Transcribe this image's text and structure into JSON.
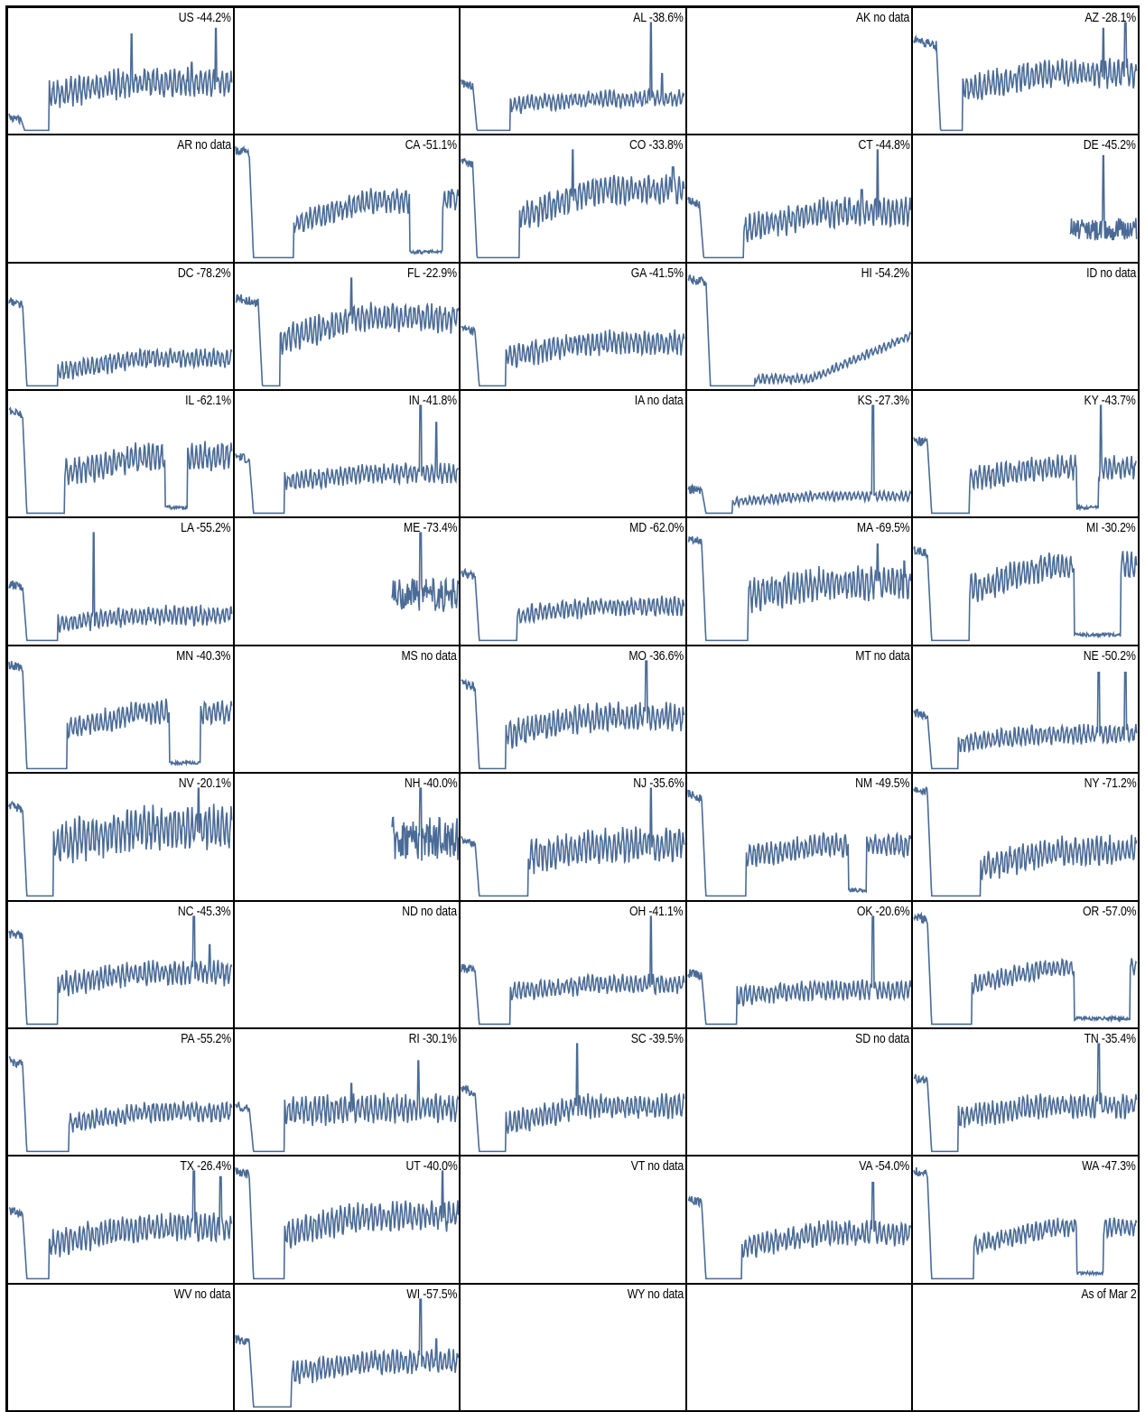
{
  "line_color": "#4a6b96",
  "footnote": "As of Mar 2",
  "chart_data": {
    "type": "line",
    "layout": "small-multiples",
    "grid": false,
    "panels": [
      {
        "id": "US",
        "label": "US -44.2%",
        "change": -44.2,
        "has_data": true,
        "baseline": 0.12,
        "low_start": 0.05,
        "low_end": 0.18,
        "growth": 0.32,
        "plateau": 0.42,
        "spikes": [
          {
            "at": 0.55,
            "h": 0.85
          },
          {
            "at": 0.82,
            "h": 0.6
          },
          {
            "at": 0.93,
            "h": 0.9
          }
        ],
        "noise": 0.12
      },
      {
        "id": "blank1",
        "label": "",
        "change": null,
        "has_data": false
      },
      {
        "id": "AL",
        "label": "AL -38.6%",
        "change": -38.6,
        "has_data": true,
        "baseline": 0.42,
        "low_start": 0.05,
        "low_end": 0.22,
        "growth": 0.22,
        "plateau": 0.28,
        "spikes": [
          {
            "at": 0.85,
            "h": 0.95
          },
          {
            "at": 0.9,
            "h": 0.5
          }
        ],
        "noise": 0.07
      },
      {
        "id": "AK",
        "label": "AK no data",
        "change": null,
        "has_data": false
      },
      {
        "id": "AZ",
        "label": "AZ -28.1%",
        "change": -28.1,
        "has_data": true,
        "baseline": 0.8,
        "low_start": 0.1,
        "low_end": 0.22,
        "growth": 0.35,
        "plateau": 0.5,
        "spikes": [
          {
            "at": 0.85,
            "h": 0.9
          },
          {
            "at": 0.95,
            "h": 0.95
          }
        ],
        "noise": 0.12
      },
      {
        "id": "AR",
        "label": "AR no data",
        "change": null,
        "has_data": false
      },
      {
        "id": "CA",
        "label": "CA -51.1%",
        "change": -51.1,
        "has_data": true,
        "baseline": 0.95,
        "low_start": 0.06,
        "low_end": 0.26,
        "growth": 0.3,
        "plateau": 0.5,
        "dip": [
          0.78,
          0.93
        ],
        "spikes": [
          {
            "at": 0.97,
            "h": 0.6
          }
        ],
        "noise": 0.1
      },
      {
        "id": "CO",
        "label": "CO -33.8%",
        "change": -33.8,
        "has_data": true,
        "baseline": 0.85,
        "low_start": 0.05,
        "low_end": 0.26,
        "growth": 0.35,
        "plateau": 0.6,
        "spikes": [
          {
            "at": 0.5,
            "h": 0.95
          },
          {
            "at": 0.95,
            "h": 0.8
          }
        ],
        "noise": 0.12
      },
      {
        "id": "CT",
        "label": "CT -44.8%",
        "change": -44.8,
        "has_data": true,
        "baseline": 0.5,
        "low_start": 0.05,
        "low_end": 0.25,
        "growth": 0.25,
        "plateau": 0.4,
        "spikes": [
          {
            "at": 0.85,
            "h": 0.95
          },
          {
            "at": 0.78,
            "h": 0.6
          }
        ],
        "noise": 0.12
      },
      {
        "id": "DE",
        "label": "DE -45.2%",
        "change": -45.2,
        "has_data": true,
        "start": 0.7,
        "baseline": 0.25,
        "growth": 0.25,
        "plateau": 0.25,
        "spikes": [
          {
            "at": 0.85,
            "h": 0.9
          }
        ],
        "noise": 0.1
      },
      {
        "id": "DC",
        "label": "DC -78.2%",
        "change": -78.2,
        "has_data": true,
        "baseline": 0.75,
        "low_start": 0.06,
        "low_end": 0.22,
        "growth": 0.12,
        "plateau": 0.24,
        "spikes": [],
        "noise": 0.08
      },
      {
        "id": "FL",
        "label": "FL -22.9%",
        "change": -22.9,
        "has_data": true,
        "baseline": 0.78,
        "low_start": 0.1,
        "low_end": 0.2,
        "growth": 0.4,
        "plateau": 0.6,
        "spikes": [
          {
            "at": 0.52,
            "h": 0.95
          }
        ],
        "noise": 0.12
      },
      {
        "id": "GA",
        "label": "GA -41.5%",
        "change": -41.5,
        "has_data": true,
        "baseline": 0.5,
        "low_start": 0.06,
        "low_end": 0.2,
        "growth": 0.25,
        "plateau": 0.38,
        "spikes": [],
        "noise": 0.1
      },
      {
        "id": "HI",
        "label": "HI -54.2%",
        "change": -54.2,
        "has_data": true,
        "baseline": 0.95,
        "low_start": 0.08,
        "low_end": 0.3,
        "growth": 0.1,
        "plateau": 0.45,
        "late_rise": true,
        "spikes": [],
        "noise": 0.04
      },
      {
        "id": "ID",
        "label": "ID no data",
        "change": null,
        "has_data": false
      },
      {
        "id": "IL",
        "label": "IL -62.1%",
        "change": -62.1,
        "has_data": true,
        "baseline": 0.9,
        "low_start": 0.06,
        "low_end": 0.25,
        "growth": 0.35,
        "plateau": 0.5,
        "dip": [
          0.7,
          0.8
        ],
        "spikes": [
          {
            "at": 0.96,
            "h": 0.6
          }
        ],
        "noise": 0.12
      },
      {
        "id": "IN",
        "label": "IN -41.8%",
        "change": -41.8,
        "has_data": true,
        "baseline": 0.5,
        "low_start": 0.06,
        "low_end": 0.22,
        "growth": 0.28,
        "plateau": 0.35,
        "spikes": [
          {
            "at": 0.83,
            "h": 0.95
          },
          {
            "at": 0.9,
            "h": 0.8
          }
        ],
        "noise": 0.08
      },
      {
        "id": "IA",
        "label": "IA no data",
        "change": null,
        "has_data": false
      },
      {
        "id": "KS",
        "label": "KS -27.3%",
        "change": -27.3,
        "has_data": true,
        "baseline": 0.22,
        "low_start": 0.06,
        "low_end": 0.2,
        "growth": 0.1,
        "plateau": 0.15,
        "spikes": [
          {
            "at": 0.83,
            "h": 0.95
          }
        ],
        "noise": 0.04
      },
      {
        "id": "KY",
        "label": "KY -43.7%",
        "change": -43.7,
        "has_data": true,
        "baseline": 0.65,
        "low_start": 0.06,
        "low_end": 0.25,
        "growth": 0.3,
        "plateau": 0.4,
        "dip": [
          0.73,
          0.83
        ],
        "spikes": [
          {
            "at": 0.84,
            "h": 0.95
          }
        ],
        "noise": 0.1
      },
      {
        "id": "LA",
        "label": "LA -55.2%",
        "change": -55.2,
        "has_data": true,
        "baseline": 0.5,
        "low_start": 0.06,
        "low_end": 0.22,
        "growth": 0.15,
        "plateau": 0.22,
        "spikes": [
          {
            "at": 0.38,
            "h": 0.95
          }
        ],
        "noise": 0.08
      },
      {
        "id": "ME",
        "label": "ME -73.4%",
        "change": -73.4,
        "has_data": true,
        "start": 0.7,
        "baseline": 0.4,
        "growth": 0.3,
        "plateau": 0.3,
        "spikes": [
          {
            "at": 0.83,
            "h": 0.95
          }
        ],
        "noise": 0.15
      },
      {
        "id": "MD",
        "label": "MD -62.0%",
        "change": -62.0,
        "has_data": true,
        "baseline": 0.6,
        "low_start": 0.06,
        "low_end": 0.25,
        "growth": 0.22,
        "plateau": 0.3,
        "spikes": [],
        "noise": 0.08
      },
      {
        "id": "MA",
        "label": "MA -69.5%",
        "change": -69.5,
        "has_data": true,
        "baseline": 0.9,
        "low_start": 0.06,
        "low_end": 0.27,
        "growth": 0.4,
        "plateau": 0.5,
        "spikes": [
          {
            "at": 0.85,
            "h": 0.85
          },
          {
            "at": 0.97,
            "h": 0.7
          }
        ],
        "noise": 0.14
      },
      {
        "id": "MI",
        "label": "MI -30.2%",
        "change": -30.2,
        "has_data": true,
        "baseline": 0.8,
        "low_start": 0.06,
        "low_end": 0.25,
        "growth": 0.45,
        "plateau": 0.65,
        "dip": [
          0.72,
          0.93
        ],
        "spikes": [],
        "noise": 0.12
      },
      {
        "id": "MN",
        "label": "MN -40.3%",
        "change": -40.3,
        "has_data": true,
        "baseline": 0.92,
        "low_start": 0.06,
        "low_end": 0.26,
        "growth": 0.35,
        "plateau": 0.5,
        "dip": [
          0.72,
          0.86
        ],
        "spikes": [],
        "noise": 0.1
      },
      {
        "id": "MS",
        "label": "MS no data",
        "change": null,
        "has_data": false
      },
      {
        "id": "MO",
        "label": "MO -36.6%",
        "change": -36.6,
        "has_data": true,
        "baseline": 0.75,
        "low_start": 0.06,
        "low_end": 0.2,
        "growth": 0.3,
        "plateau": 0.45,
        "spikes": [
          {
            "at": 0.83,
            "h": 0.95
          }
        ],
        "noise": 0.12
      },
      {
        "id": "MT",
        "label": "MT no data",
        "change": null,
        "has_data": false
      },
      {
        "id": "NE",
        "label": "NE -50.2%",
        "change": -50.2,
        "has_data": true,
        "baseline": 0.5,
        "low_start": 0.06,
        "low_end": 0.2,
        "growth": 0.22,
        "plateau": 0.3,
        "spikes": [
          {
            "at": 0.83,
            "h": 0.85
          },
          {
            "at": 0.95,
            "h": 0.85
          }
        ],
        "noise": 0.08
      },
      {
        "id": "NV",
        "label": "NV -20.1%",
        "change": -20.1,
        "has_data": true,
        "baseline": 0.8,
        "low_start": 0.06,
        "low_end": 0.2,
        "growth": 0.45,
        "plateau": 0.6,
        "spikes": [
          {
            "at": 0.85,
            "h": 0.95
          }
        ],
        "noise": 0.18
      },
      {
        "id": "NH",
        "label": "NH -40.0%",
        "change": -40.0,
        "has_data": true,
        "start": 0.7,
        "baseline": 0.5,
        "growth": 0.5,
        "plateau": 0.5,
        "spikes": [
          {
            "at": 0.83,
            "h": 0.95
          }
        ],
        "noise": 0.2
      },
      {
        "id": "NJ",
        "label": "NJ -35.6%",
        "change": -35.6,
        "has_data": true,
        "baseline": 0.5,
        "low_start": 0.06,
        "low_end": 0.3,
        "growth": 0.35,
        "plateau": 0.45,
        "spikes": [
          {
            "at": 0.85,
            "h": 0.95
          }
        ],
        "noise": 0.14
      },
      {
        "id": "NM",
        "label": "NM -49.5%",
        "change": -49.5,
        "has_data": true,
        "baseline": 0.9,
        "low_start": 0.06,
        "low_end": 0.26,
        "growth": 0.35,
        "plateau": 0.45,
        "dip": [
          0.72,
          0.8
        ],
        "spikes": [],
        "noise": 0.1
      },
      {
        "id": "NY",
        "label": "NY -71.2%",
        "change": -71.2,
        "has_data": true,
        "baseline": 0.95,
        "low_start": 0.06,
        "low_end": 0.3,
        "growth": 0.25,
        "plateau": 0.4,
        "spikes": [],
        "noise": 0.12
      },
      {
        "id": "NC",
        "label": "NC -45.3%",
        "change": -45.3,
        "has_data": true,
        "baseline": 0.8,
        "low_start": 0.06,
        "low_end": 0.22,
        "growth": 0.35,
        "plateau": 0.45,
        "spikes": [
          {
            "at": 0.83,
            "h": 0.95
          },
          {
            "at": 0.9,
            "h": 0.7
          }
        ],
        "noise": 0.1
      },
      {
        "id": "ND",
        "label": "ND no data",
        "change": null,
        "has_data": false
      },
      {
        "id": "OH",
        "label": "OH -41.1%",
        "change": -41.1,
        "has_data": true,
        "baseline": 0.5,
        "low_start": 0.06,
        "low_end": 0.22,
        "growth": 0.28,
        "plateau": 0.35,
        "spikes": [
          {
            "at": 0.85,
            "h": 0.95
          }
        ],
        "noise": 0.08
      },
      {
        "id": "OK",
        "label": "OK -20.6%",
        "change": -20.6,
        "has_data": true,
        "baseline": 0.45,
        "low_start": 0.06,
        "low_end": 0.22,
        "growth": 0.25,
        "plateau": 0.3,
        "spikes": [
          {
            "at": 0.83,
            "h": 0.95
          }
        ],
        "noise": 0.08
      },
      {
        "id": "OR",
        "label": "OR -57.0%",
        "change": -57.0,
        "has_data": true,
        "baseline": 0.95,
        "low_start": 0.06,
        "low_end": 0.26,
        "growth": 0.35,
        "plateau": 0.5,
        "dip": [
          0.72,
          0.97
        ],
        "spikes": [],
        "noise": 0.08
      },
      {
        "id": "PA",
        "label": "PA -55.2%",
        "change": -55.2,
        "has_data": true,
        "baseline": 0.8,
        "low_start": 0.06,
        "low_end": 0.27,
        "growth": 0.25,
        "plateau": 0.35,
        "spikes": [],
        "noise": 0.08
      },
      {
        "id": "RI",
        "label": "RI -30.1%",
        "change": -30.1,
        "has_data": true,
        "baseline": 0.4,
        "low_start": 0.06,
        "low_end": 0.22,
        "growth": 0.35,
        "plateau": 0.38,
        "spikes": [
          {
            "at": 0.52,
            "h": 0.6
          },
          {
            "at": 0.82,
            "h": 0.8
          }
        ],
        "noise": 0.12
      },
      {
        "id": "SC",
        "label": "SC -39.5%",
        "change": -39.5,
        "has_data": true,
        "baseline": 0.55,
        "low_start": 0.06,
        "low_end": 0.2,
        "growth": 0.25,
        "plateau": 0.4,
        "spikes": [
          {
            "at": 0.52,
            "h": 0.95
          }
        ],
        "noise": 0.1
      },
      {
        "id": "SD",
        "label": "SD no data",
        "change": null,
        "has_data": false
      },
      {
        "id": "TN",
        "label": "TN -35.4%",
        "change": -35.4,
        "has_data": true,
        "baseline": 0.65,
        "low_start": 0.06,
        "low_end": 0.2,
        "growth": 0.3,
        "plateau": 0.4,
        "spikes": [
          {
            "at": 0.83,
            "h": 0.95
          }
        ],
        "noise": 0.1
      },
      {
        "id": "TX",
        "label": "TX -26.4%",
        "change": -26.4,
        "has_data": true,
        "baseline": 0.6,
        "low_start": 0.06,
        "low_end": 0.18,
        "growth": 0.3,
        "plateau": 0.45,
        "spikes": [
          {
            "at": 0.83,
            "h": 0.95
          },
          {
            "at": 0.95,
            "h": 0.9
          }
        ],
        "noise": 0.12
      },
      {
        "id": "UT",
        "label": "UT -40.0%",
        "change": -40.0,
        "has_data": true,
        "baseline": 0.95,
        "low_start": 0.06,
        "low_end": 0.22,
        "growth": 0.4,
        "plateau": 0.55,
        "spikes": [
          {
            "at": 0.93,
            "h": 0.95
          }
        ],
        "noise": 0.12
      },
      {
        "id": "VT",
        "label": "VT no data",
        "change": null,
        "has_data": false
      },
      {
        "id": "VA",
        "label": "VA -54.0%",
        "change": -54.0,
        "has_data": true,
        "baseline": 0.7,
        "low_start": 0.06,
        "low_end": 0.24,
        "growth": 0.28,
        "plateau": 0.4,
        "spikes": [
          {
            "at": 0.83,
            "h": 0.85
          }
        ],
        "noise": 0.1
      },
      {
        "id": "WA",
        "label": "WA -47.3%",
        "change": -47.3,
        "has_data": true,
        "baseline": 0.95,
        "low_start": 0.06,
        "low_end": 0.27,
        "growth": 0.3,
        "plateau": 0.45,
        "dip": [
          0.73,
          0.85
        ],
        "spikes": [],
        "noise": 0.08
      },
      {
        "id": "WV",
        "label": "WV no data",
        "change": null,
        "has_data": false
      },
      {
        "id": "WI",
        "label": "WI -57.5%",
        "change": -57.5,
        "has_data": true,
        "baseline": 0.6,
        "low_start": 0.06,
        "low_end": 0.25,
        "growth": 0.3,
        "plateau": 0.4,
        "spikes": [
          {
            "at": 0.83,
            "h": 0.95
          },
          {
            "at": 0.9,
            "h": 0.6
          }
        ],
        "noise": 0.1
      },
      {
        "id": "WY",
        "label": "WY no data",
        "change": null,
        "has_data": false
      },
      {
        "id": "blank2",
        "label": "",
        "change": null,
        "has_data": false
      },
      {
        "id": "asof",
        "label": "As of Mar 2",
        "change": null,
        "has_data": false
      }
    ]
  }
}
